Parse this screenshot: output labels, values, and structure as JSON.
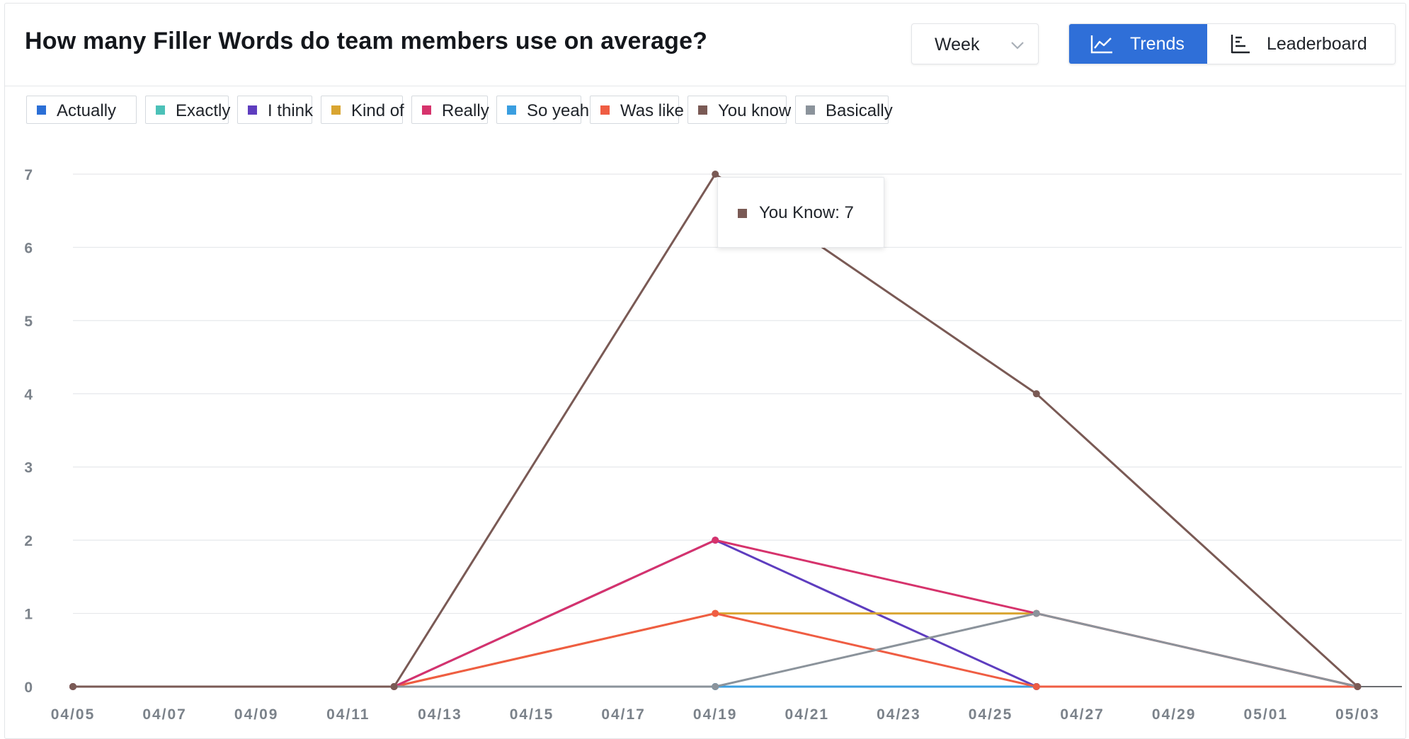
{
  "header": {
    "title": "How many Filler Words do team members use on average?",
    "period": "Week",
    "tabs": [
      {
        "label": "Trends",
        "icon": "line-chart-icon",
        "active": true
      },
      {
        "label": "Leaderboard",
        "icon": "leaderboard-icon",
        "active": false
      }
    ],
    "accent": "#2f6fd8"
  },
  "tooltip": {
    "label": "You Know:",
    "value": "7",
    "color": "#7a5a55"
  },
  "chart_data": {
    "type": "line",
    "x": [
      "04/05",
      "04/12",
      "04/19",
      "04/26",
      "05/03"
    ],
    "x_tick_labels": [
      "04/05",
      "04/07",
      "04/09",
      "04/11",
      "04/13",
      "04/15",
      "04/17",
      "04/19",
      "04/21",
      "04/23",
      "04/25",
      "04/27",
      "04/29",
      "05/01",
      "05/03"
    ],
    "y_ticks": [
      "0",
      "1",
      "2",
      "3",
      "4",
      "5",
      "6",
      "7"
    ],
    "ylim": [
      0,
      7
    ],
    "grid": true,
    "legend_position": "top-left",
    "series": [
      {
        "name": "Actually",
        "color": "#2b6fd6",
        "values": [
          0,
          0,
          0,
          0,
          0
        ]
      },
      {
        "name": "Exactly",
        "color": "#4cc1b8",
        "values": [
          0,
          0,
          0,
          0,
          0
        ]
      },
      {
        "name": "I think",
        "color": "#5e3dbf",
        "values": [
          0,
          0,
          2,
          0,
          0
        ]
      },
      {
        "name": "Kind of",
        "color": "#d9a531",
        "values": [
          0,
          0,
          1,
          1,
          0
        ]
      },
      {
        "name": "Really",
        "color": "#d6336c",
        "values": [
          0,
          0,
          2,
          1,
          0
        ]
      },
      {
        "name": "So yeah",
        "color": "#3a9ee0",
        "values": [
          0,
          0,
          0,
          0,
          0
        ]
      },
      {
        "name": "Was like",
        "color": "#ef5d43",
        "values": [
          0,
          0,
          1,
          0,
          0
        ]
      },
      {
        "name": "You know",
        "color": "#7a5a55",
        "values": [
          0,
          0,
          7,
          4,
          0
        ]
      },
      {
        "name": "Basically",
        "color": "#8b939b",
        "values": [
          0,
          0,
          0,
          1,
          0
        ]
      }
    ]
  }
}
